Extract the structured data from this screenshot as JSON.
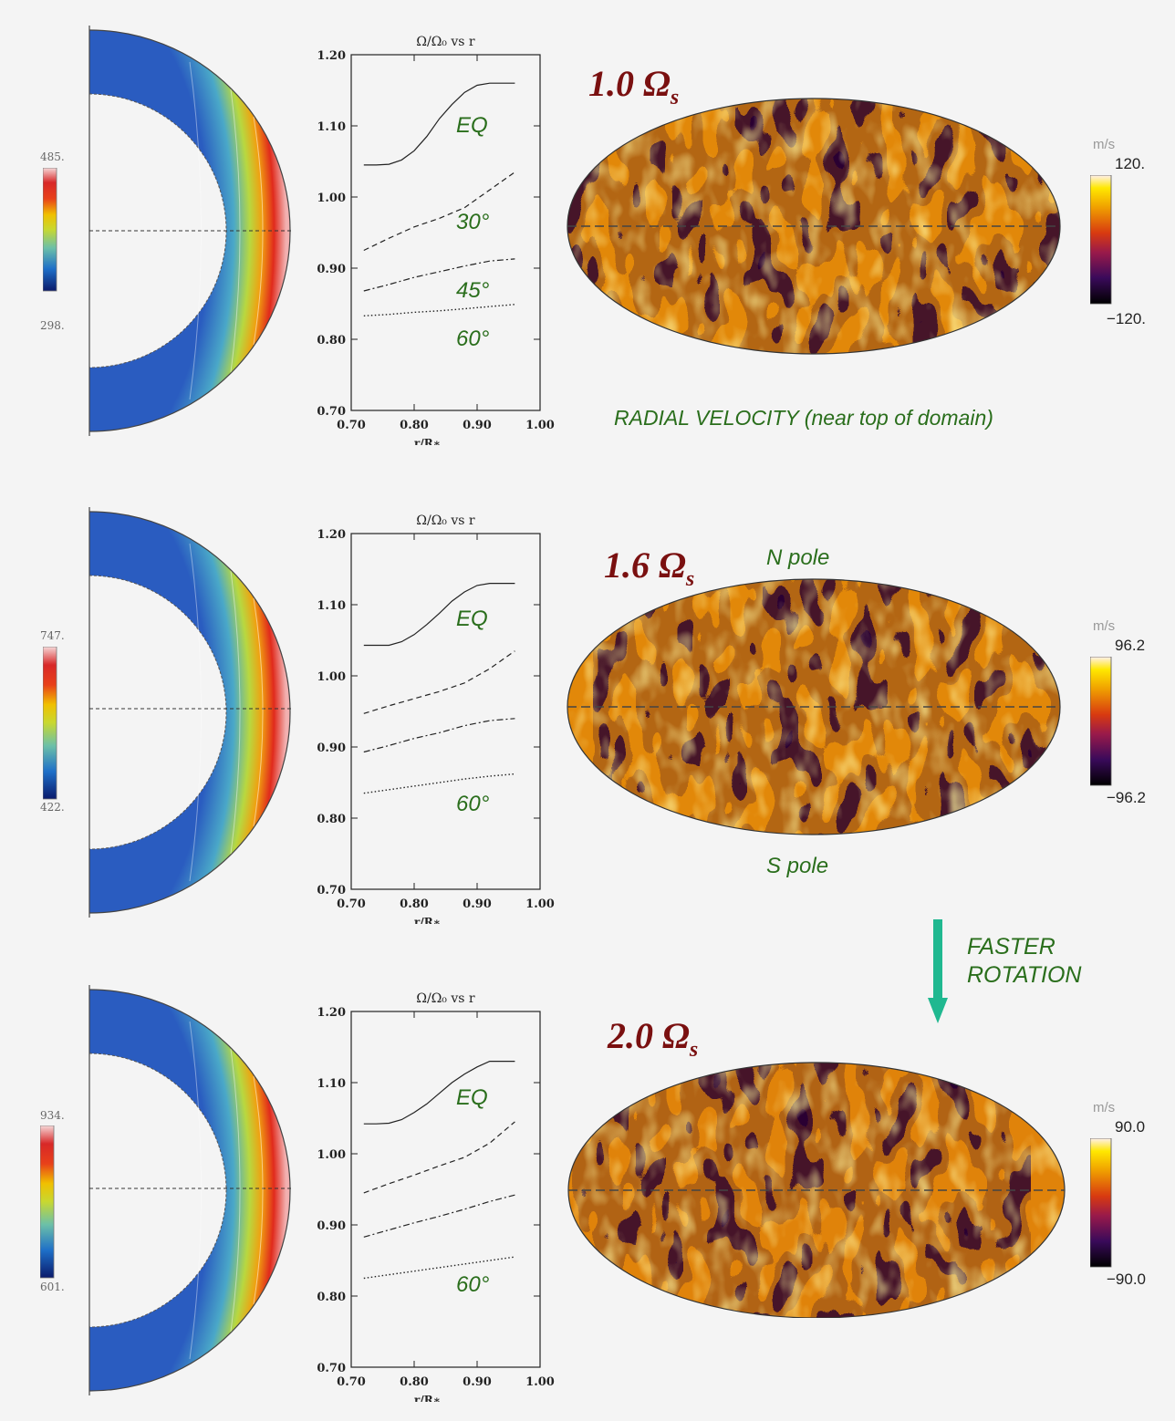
{
  "panels": [
    {
      "speed": "1.0",
      "omega_unit": "Ω",
      "sub": "s",
      "hemisphere": {
        "cbar_max": "485.",
        "cbar_min": "298."
      },
      "map": {
        "unit": "m/s",
        "cbar_max": "120.",
        "cbar_min": "−120."
      },
      "chart_labels": [
        "EQ",
        "30°",
        "45°",
        "60°"
      ]
    },
    {
      "speed": "1.6",
      "omega_unit": "Ω",
      "sub": "s",
      "hemisphere": {
        "cbar_max": "747.",
        "cbar_min": "422."
      },
      "map": {
        "unit": "m/s",
        "cbar_max": "96.2",
        "cbar_min": "−96.2"
      },
      "chart_labels": [
        "EQ",
        "60°"
      ]
    },
    {
      "speed": "2.0",
      "omega_unit": "Ω",
      "sub": "s",
      "hemisphere": {
        "cbar_max": "934.",
        "cbar_min": "601."
      },
      "map": {
        "unit": "m/s",
        "cbar_max": "90.0",
        "cbar_min": "−90.0"
      },
      "chart_labels": [
        "EQ",
        "60°"
      ]
    }
  ],
  "annotations": {
    "radial_velocity": "RADIAL VELOCITY (near top of domain)",
    "n_pole": "N pole",
    "s_pole": "S pole",
    "faster": "FASTER",
    "rotation": "ROTATION"
  },
  "colors": {
    "label_green": "#2a6e1c",
    "rate_red": "#7a1010",
    "arrow": "#20b890"
  },
  "chart_data": [
    {
      "type": "line",
      "title": "Ω/Ω₀ vs r",
      "xlabel": "r/R∗",
      "ylabel": "",
      "xlim": [
        0.7,
        1.0
      ],
      "ylim": [
        0.7,
        1.2
      ],
      "xticks": [
        "0.70",
        "0.80",
        "0.90",
        "1.00"
      ],
      "yticks": [
        "0.70",
        "0.80",
        "0.90",
        "1.00",
        "1.10",
        "1.20"
      ],
      "series": [
        {
          "name": "EQ",
          "style": "solid",
          "x": [
            0.72,
            0.74,
            0.76,
            0.78,
            0.8,
            0.82,
            0.84,
            0.86,
            0.88,
            0.9,
            0.92,
            0.94,
            0.96
          ],
          "y": [
            1.045,
            1.045,
            1.046,
            1.052,
            1.065,
            1.085,
            1.11,
            1.13,
            1.147,
            1.157,
            1.16,
            1.16,
            1.16
          ]
        },
        {
          "name": "30°",
          "style": "dashed",
          "x": [
            0.72,
            0.76,
            0.8,
            0.84,
            0.88,
            0.92,
            0.96
          ],
          "y": [
            0.925,
            0.942,
            0.958,
            0.97,
            0.985,
            1.01,
            1.035
          ]
        },
        {
          "name": "45°",
          "style": "dashdot",
          "x": [
            0.72,
            0.76,
            0.8,
            0.84,
            0.88,
            0.92,
            0.96
          ],
          "y": [
            0.868,
            0.877,
            0.887,
            0.895,
            0.903,
            0.91,
            0.913
          ]
        },
        {
          "name": "60°",
          "style": "dotted",
          "x": [
            0.72,
            0.76,
            0.8,
            0.84,
            0.88,
            0.92,
            0.96
          ],
          "y": [
            0.833,
            0.835,
            0.838,
            0.84,
            0.843,
            0.846,
            0.849
          ]
        }
      ]
    },
    {
      "type": "line",
      "title": "Ω/Ω₀ vs r",
      "xlabel": "r/R∗",
      "ylabel": "",
      "xlim": [
        0.7,
        1.0
      ],
      "ylim": [
        0.7,
        1.2
      ],
      "xticks": [
        "0.70",
        "0.80",
        "0.90",
        "1.00"
      ],
      "yticks": [
        "0.70",
        "0.80",
        "0.90",
        "1.00",
        "1.10",
        "1.20"
      ],
      "series": [
        {
          "name": "EQ",
          "style": "solid",
          "x": [
            0.72,
            0.74,
            0.76,
            0.78,
            0.8,
            0.82,
            0.84,
            0.86,
            0.88,
            0.9,
            0.92,
            0.94,
            0.96
          ],
          "y": [
            1.043,
            1.043,
            1.043,
            1.048,
            1.058,
            1.072,
            1.088,
            1.105,
            1.118,
            1.127,
            1.13,
            1.13,
            1.13
          ]
        },
        {
          "name": "",
          "style": "dashed",
          "x": [
            0.72,
            0.76,
            0.8,
            0.84,
            0.88,
            0.92,
            0.96
          ],
          "y": [
            0.947,
            0.958,
            0.968,
            0.978,
            0.99,
            1.01,
            1.035
          ]
        },
        {
          "name": "",
          "style": "dashdot",
          "x": [
            0.72,
            0.76,
            0.8,
            0.84,
            0.88,
            0.92,
            0.96
          ],
          "y": [
            0.893,
            0.902,
            0.912,
            0.92,
            0.93,
            0.937,
            0.94
          ]
        },
        {
          "name": "60°",
          "style": "dotted",
          "x": [
            0.72,
            0.76,
            0.8,
            0.84,
            0.88,
            0.92,
            0.96
          ],
          "y": [
            0.835,
            0.84,
            0.845,
            0.85,
            0.855,
            0.859,
            0.862
          ]
        }
      ]
    },
    {
      "type": "line",
      "title": "Ω/Ω₀ vs r",
      "xlabel": "r/R∗",
      "ylabel": "",
      "xlim": [
        0.7,
        1.0
      ],
      "ylim": [
        0.7,
        1.2
      ],
      "xticks": [
        "0.70",
        "0.80",
        "0.90",
        "1.00"
      ],
      "yticks": [
        "0.70",
        "0.80",
        "0.90",
        "1.00",
        "1.10",
        "1.20"
      ],
      "series": [
        {
          "name": "EQ",
          "style": "solid",
          "x": [
            0.72,
            0.74,
            0.76,
            0.78,
            0.8,
            0.82,
            0.84,
            0.86,
            0.88,
            0.9,
            0.92,
            0.94,
            0.96
          ],
          "y": [
            1.042,
            1.042,
            1.043,
            1.048,
            1.058,
            1.07,
            1.085,
            1.1,
            1.112,
            1.122,
            1.13,
            1.13,
            1.13
          ]
        },
        {
          "name": "",
          "style": "dashed",
          "x": [
            0.72,
            0.76,
            0.8,
            0.84,
            0.88,
            0.92,
            0.96
          ],
          "y": [
            0.945,
            0.958,
            0.97,
            0.983,
            0.995,
            1.015,
            1.045
          ]
        },
        {
          "name": "",
          "style": "dashdot",
          "x": [
            0.72,
            0.76,
            0.8,
            0.84,
            0.88,
            0.92,
            0.96
          ],
          "y": [
            0.883,
            0.893,
            0.903,
            0.912,
            0.922,
            0.933,
            0.942
          ]
        },
        {
          "name": "60°",
          "style": "dotted",
          "x": [
            0.72,
            0.76,
            0.8,
            0.84,
            0.88,
            0.92,
            0.96
          ],
          "y": [
            0.825,
            0.83,
            0.835,
            0.84,
            0.845,
            0.85,
            0.855
          ]
        }
      ]
    }
  ]
}
